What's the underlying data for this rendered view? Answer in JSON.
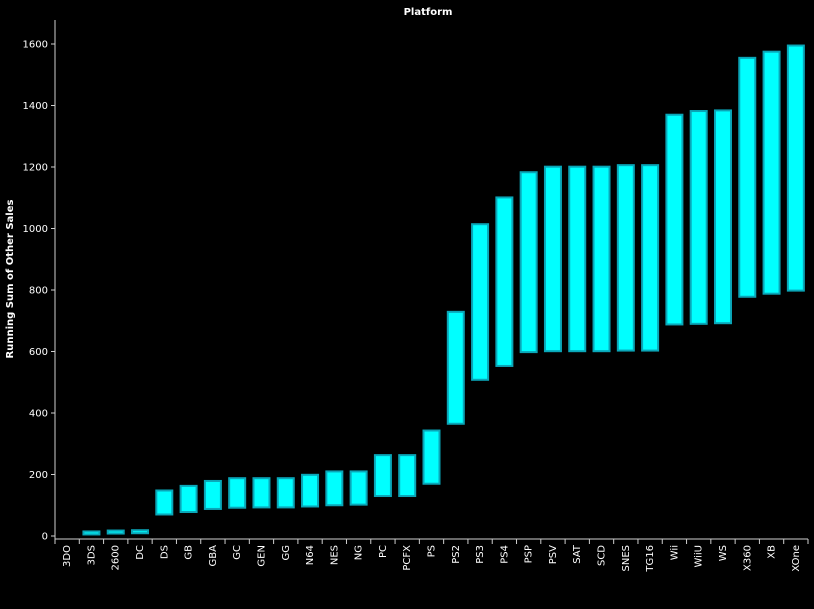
{
  "chart_data": {
    "type": "bar",
    "subtype": "gantt-running-sum",
    "title": "Platform",
    "ylabel": "Running Sum of Other Sales",
    "xlabel": "",
    "ylim": [
      0,
      1650
    ],
    "yticks": [
      0,
      200,
      400,
      600,
      800,
      1000,
      1200,
      1400,
      1600
    ],
    "grid": false,
    "bar_color": "#00ffff",
    "bar_edge_color": "#0aa6b8",
    "background": "#000000",
    "categories": [
      "3DO",
      "3DS",
      "2600",
      "DC",
      "DS",
      "GB",
      "GBA",
      "GC",
      "GEN",
      "GG",
      "N64",
      "NES",
      "NG",
      "PC",
      "PCFX",
      "PS",
      "PS2",
      "PS3",
      "PS4",
      "PSP",
      "PSV",
      "SAT",
      "SCD",
      "SNES",
      "TG16",
      "Wii",
      "WiiU",
      "WS",
      "X360",
      "XB",
      "XOne"
    ],
    "series": [
      {
        "low": [
          0,
          5,
          8,
          9,
          70,
          78,
          88,
          92,
          93,
          93,
          96,
          100,
          102,
          130,
          130,
          170,
          365,
          508,
          553,
          598,
          601,
          601,
          601,
          603,
          603,
          688,
          690,
          692,
          778,
          788,
          798
        ],
        "high": [
          0,
          8,
          9,
          12,
          148,
          163,
          179,
          188,
          188,
          188,
          199,
          210,
          210,
          263,
          263,
          343,
          729,
          1014,
          1101,
          1183,
          1201,
          1201,
          1201,
          1206,
          1206,
          1370,
          1382,
          1384,
          1555,
          1575,
          1595
        ]
      }
    ]
  }
}
